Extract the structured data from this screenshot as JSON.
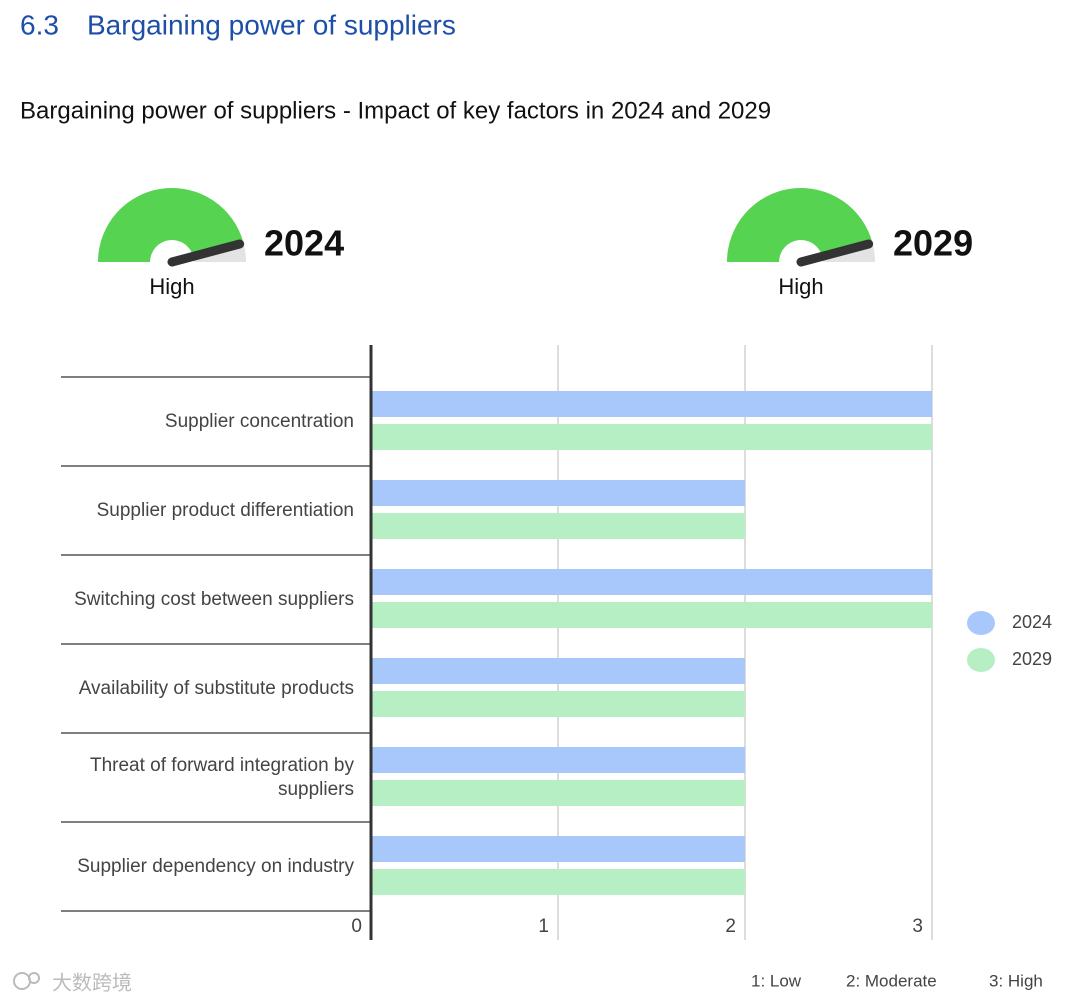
{
  "section": {
    "number": "6.3",
    "title": "Bargaining power of suppliers"
  },
  "gauges": [
    {
      "year": "2024",
      "level": "High"
    },
    {
      "year": "2029",
      "level": "High"
    }
  ],
  "chart_data": {
    "type": "bar",
    "orientation": "horizontal",
    "title": "Bargaining power of suppliers - Impact of key factors in 2024 and 2029",
    "categories": [
      "Supplier concentration",
      "Supplier product differentiation",
      "Switching cost between suppliers",
      "Availability of substitute products",
      "Threat of forward integration by suppliers",
      "Supplier dependency on industry"
    ],
    "series": [
      {
        "name": "2024",
        "color": "#a8c7fa",
        "values": [
          3,
          2,
          3,
          2,
          2,
          2
        ]
      },
      {
        "name": "2029",
        "color": "#b7efc5",
        "values": [
          3,
          2,
          3,
          2,
          2,
          2
        ]
      }
    ],
    "xlim": [
      0,
      3
    ],
    "xticks": [
      0,
      1,
      2,
      3
    ],
    "grid": true,
    "legend": "right"
  },
  "scale_notes": [
    "1: Low",
    "2: Moderate",
    "3: High"
  ],
  "watermark": "大数跨境"
}
